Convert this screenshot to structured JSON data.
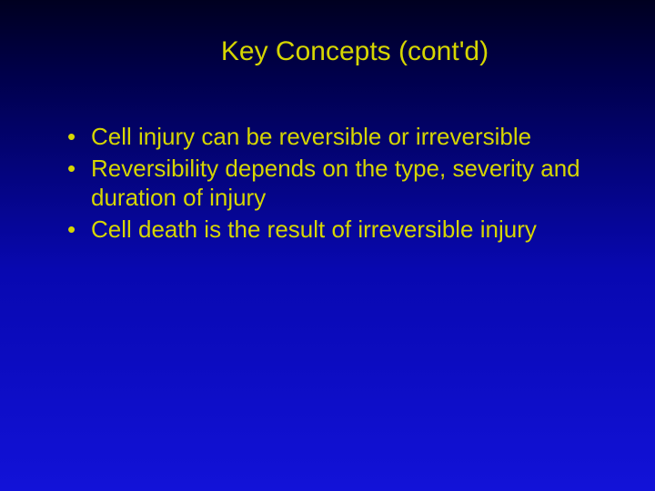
{
  "slide": {
    "title": "Key Concepts (cont'd)",
    "bullets": [
      "Cell injury can be reversible or irreversible",
      "Reversibility depends on the type, severity and duration of injury",
      "Cell death is the result of irreversible injury"
    ],
    "colors": {
      "background_top": "#000020",
      "background_mid": "#0808b0",
      "background_bottom": "#1212d8",
      "title_color": "#d6d600",
      "body_color": "#d6d600"
    },
    "typography": {
      "title_fontsize": 30,
      "body_fontsize": 26,
      "font_family": "Arial"
    }
  }
}
